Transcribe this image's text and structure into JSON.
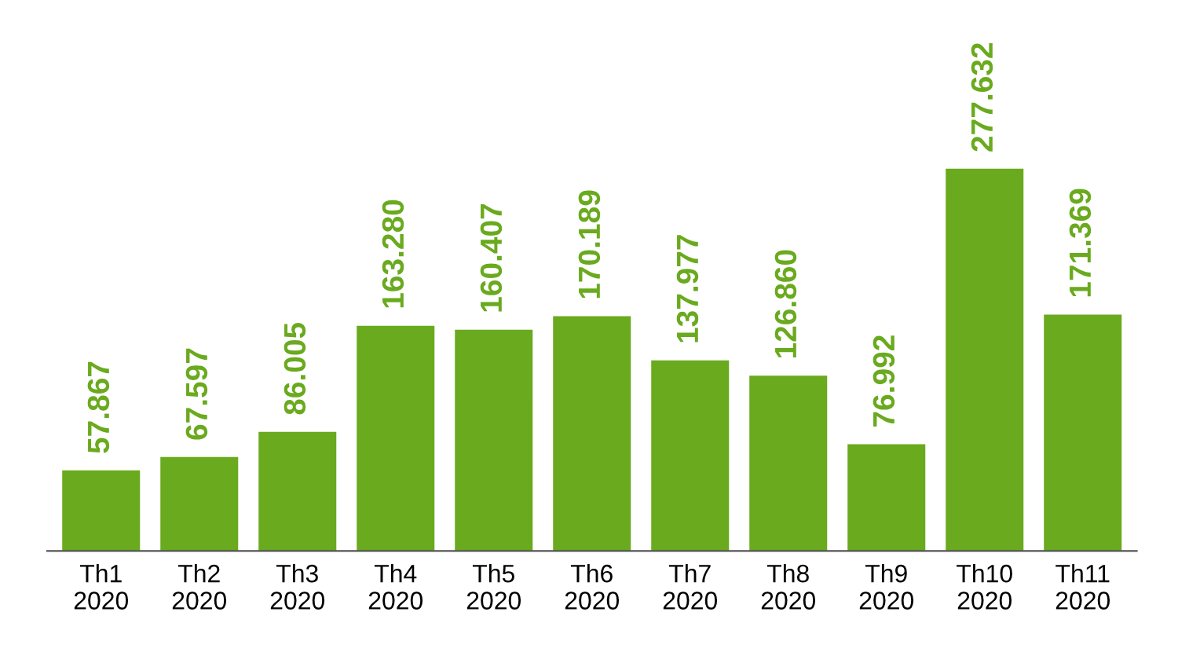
{
  "chart_data": {
    "type": "bar",
    "categories": [
      "Th1\n2020",
      "Th2\n2020",
      "Th3\n2020",
      "Th4\n2020",
      "Th5\n2020",
      "Th6\n2020",
      "Th7\n2020",
      "Th8\n2020",
      "Th9\n2020",
      "Th10\n2020",
      "Th11\n2020"
    ],
    "values": [
      57.867,
      67.597,
      86.005,
      163.28,
      160.407,
      170.189,
      137.977,
      126.86,
      76.992,
      277.632,
      171.369
    ],
    "value_labels": [
      "57.867",
      "67.597",
      "86.005",
      "163.280",
      "160.407",
      "170.189",
      "137.977",
      "126.860",
      "76.992",
      "277.632",
      "171.369"
    ],
    "color": "#6aaa1e",
    "tick_labels": "x",
    "grid": false,
    "legend": false
  }
}
